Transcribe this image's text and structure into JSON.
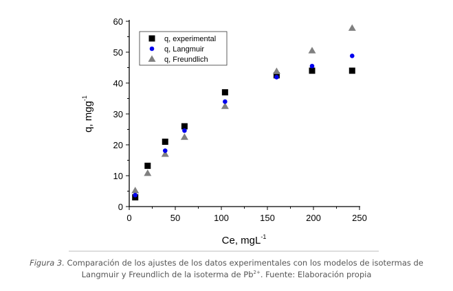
{
  "chart_data": {
    "type": "scatter",
    "xlabel": "Ce, mgL",
    "xlabel_sup": "-1",
    "ylabel": "q, mgg",
    "ylabel_sup": "-1",
    "xlim": [
      0,
      250
    ],
    "ylim": [
      0,
      60
    ],
    "xticks": [
      "0",
      "50",
      "100",
      "150",
      "200",
      "250"
    ],
    "yticks": [
      "0",
      "10",
      "20",
      "30",
      "40",
      "50",
      "60"
    ],
    "grid": false,
    "legend_position": "top-left",
    "series": [
      {
        "name": "q, experimental",
        "marker": "square",
        "color": "#000000",
        "x": [
          6.5,
          20,
          39,
          60,
          104,
          160,
          198.5,
          242
        ],
        "y": [
          3,
          13.2,
          21,
          26,
          37,
          42.5,
          44,
          44
        ]
      },
      {
        "name": "q, Langmuir",
        "marker": "circle",
        "color": "#0000ee",
        "x": [
          6.5,
          39,
          60,
          104,
          160,
          198.5,
          242
        ],
        "y": [
          3.7,
          18.1,
          24.6,
          34,
          41.9,
          45.5,
          48.8
        ]
      },
      {
        "name": "q, Freundlich",
        "marker": "triangle",
        "color": "#808080",
        "x": [
          6.5,
          20,
          39,
          60,
          104,
          160,
          198.5,
          242
        ],
        "y": [
          5.2,
          10.8,
          17,
          22.5,
          32.5,
          43.8,
          50.5,
          57.8
        ]
      }
    ]
  },
  "caption": {
    "label": "Figura 3.",
    "line1": " Comparación de los ajustes de los datos experimentales con los modelos de isotermas de",
    "line2_a": "Langmuir y Freundlich de la isoterma de Pb",
    "line2_sup": "2+",
    "line2_b": ". Fuente: Elaboración propia"
  }
}
